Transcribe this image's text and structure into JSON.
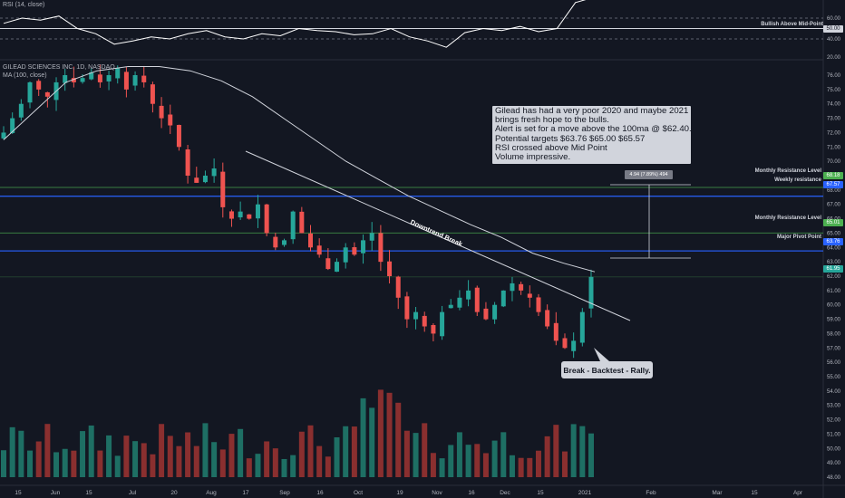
{
  "header": {
    "rsi_label": "RSI (14, close)",
    "symbol_label": "GILEAD SCIENCES INC, 1D, NASDAQ",
    "ma_label": "MA (100, close)"
  },
  "annotations": {
    "note_lines": [
      "Gilead has had a very poor 2020 and maybe 2021",
      "brings fresh hope to the bulls.",
      "Alert is set for a move above the 100ma @ $62.40.",
      "Potential targets $63.76 $65.00 $65.57",
      "RSI crossed above Mid Point",
      "Volume impressive."
    ],
    "callout": "Break - Backtest - Rally.",
    "downtrend_label": "Downtrend Break",
    "measure_label": "4.94 (7.89%) 494",
    "bullish_label": "Bullish Above Mid-Point"
  },
  "colors": {
    "background": "#131722",
    "up": "#26a69a",
    "down": "#ef5350",
    "up_volume": "#1e6f64",
    "down_volume": "#8a2f2f",
    "ma": "#d1d4dc",
    "rsi": "#ffffff",
    "level_green": "#4caf50",
    "level_blue": "#2962ff",
    "axis_text": "#b2b5be"
  },
  "levels": [
    {
      "label": "Monthly Resistance Level",
      "price": 68.18,
      "tag": "68.18",
      "color": "green"
    },
    {
      "label": "Weekly resistance",
      "price": 67.57,
      "tag": "67.57",
      "color": "blue"
    },
    {
      "label": "Monthly Resistance Level",
      "price": 65.01,
      "tag": "65.01",
      "color": "green"
    },
    {
      "label": "Major Pivot Point",
      "price": 63.76,
      "tag": "63.76",
      "color": "blue"
    },
    {
      "label": "",
      "price": 61.95,
      "tag": "61.95",
      "color": "green"
    }
  ],
  "rsi_levels": {
    "mid": 50,
    "mid_tag": "50.00"
  },
  "chart_data": {
    "type": "candlestick",
    "title": "GILEAD SCIENCES INC, 1D, NASDAQ",
    "x_ticks": [
      "15",
      "Jun",
      "15",
      "Jul",
      "20",
      "Aug",
      "17",
      "Sep",
      "16",
      "Oct",
      "19",
      "Nov",
      "16",
      "Dec",
      "15",
      "2021",
      "Feb",
      "Mar",
      "15",
      "Apr"
    ],
    "price_axis": {
      "ylim": [
        47.5,
        77
      ],
      "ticks": [
        "48.00",
        "49.00",
        "50.00",
        "51.00",
        "52.00",
        "53.00",
        "54.00",
        "55.00",
        "56.00",
        "57.00",
        "58.00",
        "59.00",
        "60.00",
        "61.00",
        "62.00",
        "63.00",
        "64.00",
        "65.00",
        "66.00",
        "67.00",
        "68.00",
        "69.00",
        "70.00",
        "71.00",
        "72.00",
        "73.00",
        "74.00",
        "75.00",
        "76.00"
      ]
    },
    "rsi_axis": {
      "ylim": [
        15,
        80
      ],
      "ticks": [
        "20.00",
        "40.00",
        "50.00",
        "60.00"
      ]
    },
    "series": [
      {
        "name": "GILEAD SCIENCES INC",
        "close_approx": [
          72,
          73,
          74,
          75.5,
          75,
          74.5,
          75.5,
          76,
          75.5,
          75.8,
          76.2,
          75.5,
          76,
          76.5,
          75,
          76,
          75.5,
          74,
          73,
          72.5,
          71,
          69,
          68.5,
          69,
          69.5,
          66.8,
          66,
          66.5,
          66,
          67,
          65,
          64,
          64.5,
          66.5,
          65,
          64,
          63.5,
          62.5,
          63,
          64,
          63.5,
          64.5,
          65,
          63,
          62,
          60.5,
          59,
          59.5,
          58.5,
          58,
          59.5,
          60,
          60.5,
          61,
          59.5,
          59,
          60,
          61,
          61.5,
          61,
          60.5,
          59.5,
          58.5,
          57.5,
          57,
          57.5,
          59.5,
          61.95
        ]
      },
      {
        "name": "MA (100, close)",
        "values_approx": [
          71.5,
          73.5,
          75.5,
          76.3,
          76.6,
          76.6,
          76.3,
          75.6,
          74.5,
          73,
          71.5,
          70,
          68.8,
          67.6,
          66.6,
          65.6,
          64.7,
          63.6,
          62.9,
          62.3
        ]
      },
      {
        "name": "RSI (14, close)",
        "values_approx": [
          55,
          60,
          58,
          62,
          50,
          45,
          35,
          38,
          42,
          40,
          45,
          48,
          42,
          40,
          45,
          43,
          50,
          48,
          47,
          44,
          45,
          50,
          42,
          38,
          32,
          46,
          50,
          48,
          52,
          47,
          50,
          75,
          80
        ]
      }
    ],
    "grid": false,
    "legend": "top-left"
  }
}
